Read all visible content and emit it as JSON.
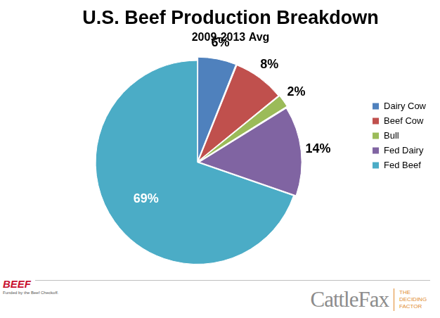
{
  "chart_data": {
    "type": "pie",
    "title": "U.S. Beef Production Breakdown",
    "subtitle": "2009-2013 Avg",
    "categories": [
      "Dairy Cow",
      "Beef Cow",
      "Bull",
      "Fed Dairy",
      "Fed Beef"
    ],
    "values": [
      6,
      8,
      2,
      14,
      69
    ],
    "value_labels": [
      "6%",
      "8%",
      "2%",
      "14%",
      "69%"
    ],
    "colors": [
      "#4f81bd",
      "#c0504d",
      "#9bbb59",
      "#8064a2",
      "#4bacc6"
    ],
    "data_labels": true,
    "legend": "right"
  },
  "footer": {
    "left_logo": "BEEF",
    "left_caption": "Funded by the Beef Checkoff.",
    "right_logo": "CattleFax",
    "right_tagline": "THE DECIDING FACTOR"
  }
}
